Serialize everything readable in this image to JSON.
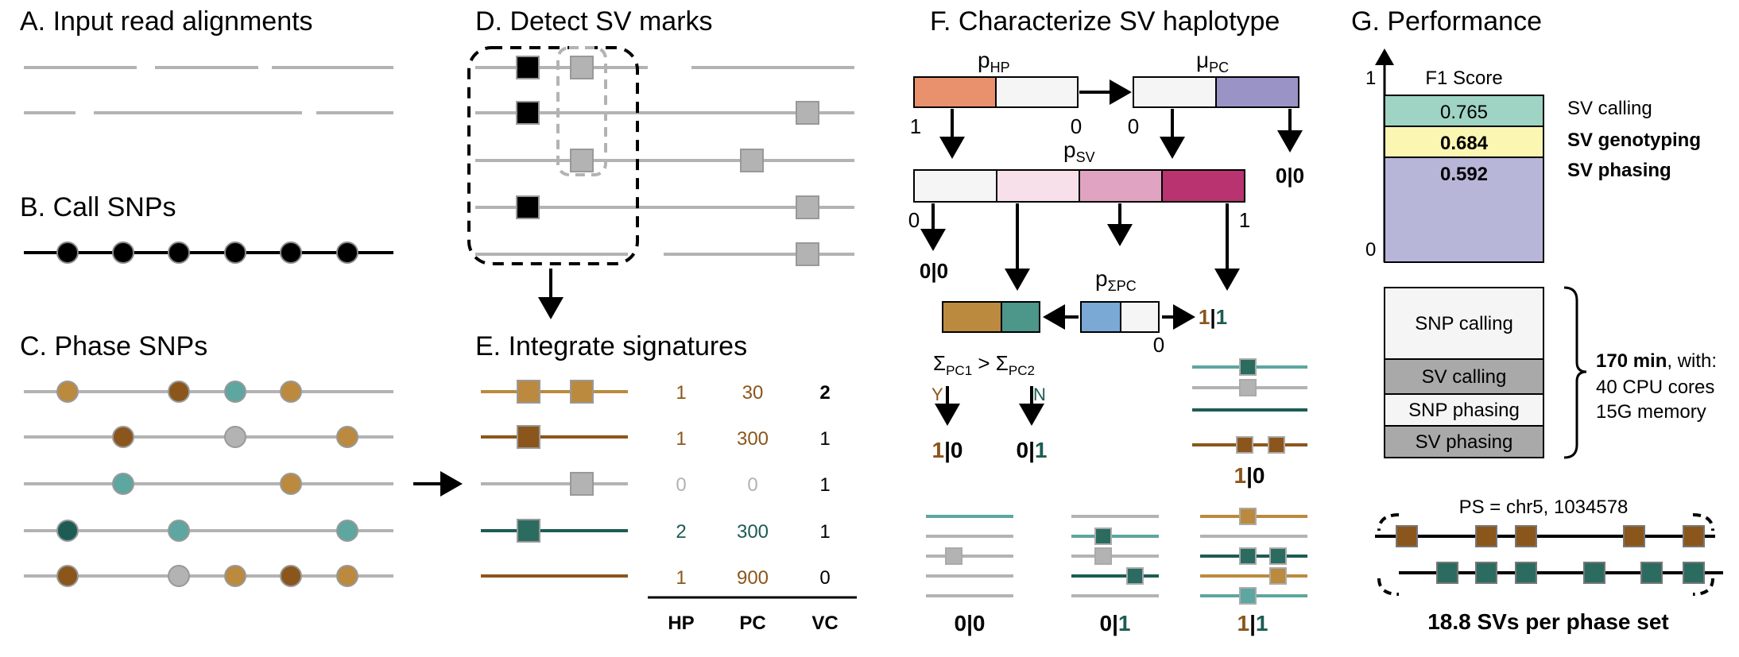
{
  "colors": {
    "read_gray": "#b3b3b3",
    "black": "#000000",
    "hp1_brown": "#bb8a3f",
    "hp1_dark_brown": "#8b561b",
    "hp2_teal": "#5ea6a0",
    "hp2_dark_teal": "#1d5c54",
    "sv_dark_square": "#2b6b60",
    "p_hp_fill": "#e8916c",
    "mu_pc_fill": "#9a93c6",
    "p_sv_light": "#f7e0ea",
    "p_sv_mid": "#e0a4c2",
    "p_sv_dark": "#b8336f",
    "p_sigma_blue": "#79a9d4",
    "f1_sv_calling": "#9fd3c4",
    "f1_sv_genotyping": "#fbf6b2",
    "f1_sv_phasing": "#b8b6d8",
    "runtime_light": "#f5f5f5",
    "runtime_dark": "#a9a9a9"
  },
  "panel_a": {
    "title": "A. Input read alignments"
  },
  "panel_b": {
    "title": "B. Call SNPs"
  },
  "panel_c": {
    "title": "C. Phase SNPs"
  },
  "panel_d": {
    "title": "D. Detect SV marks"
  },
  "panel_e": {
    "title": "E. Integrate signatures",
    "headers": [
      "HP",
      "PC",
      "VC"
    ],
    "rows": [
      {
        "hp": "1",
        "pc": "30",
        "vc": "2"
      },
      {
        "hp": "1",
        "pc": "300",
        "vc": "1"
      },
      {
        "hp": "0",
        "pc": "0",
        "vc": "1"
      },
      {
        "hp": "2",
        "pc": "300",
        "vc": "1"
      },
      {
        "hp": "1",
        "pc": "900",
        "vc": "0"
      }
    ]
  },
  "panel_f": {
    "title": "F. Characterize SV haplotype",
    "p_hp_label": "p",
    "p_hp_sub": "HP",
    "mu_pc_label": "μ",
    "mu_pc_sub": "PC",
    "p_sv_label": "p",
    "p_sv_sub": "SV",
    "p_sigma_label": "p",
    "p_sigma_sub": "ΣPC",
    "tick_one": "1",
    "tick_zero": "0",
    "gt_00": "0|0",
    "gt_11_a": "1",
    "gt_11_bar": "|",
    "gt_11_b": "1",
    "sigma_pc1": "Σ",
    "sigma_pc1_sub": "PC1",
    "gt_sign": " > ",
    "sigma_pc2": "Σ",
    "sigma_pc2_sub": "PC2",
    "yes": "Y",
    "no": "N",
    "gt_10_a": "1",
    "gt_10_b": "|0",
    "gt_01_a": "0|",
    "gt_01_b": "1"
  },
  "panel_g": {
    "title": "G. Performance",
    "axis_top": "1",
    "axis_bottom": "0",
    "f1_label": "F1 Score",
    "metrics": [
      {
        "value": "0.765",
        "label": "SV calling"
      },
      {
        "value": "0.684",
        "label": "SV genotyping"
      },
      {
        "value": "0.592",
        "label": "SV phasing"
      }
    ],
    "runtime_steps": [
      "SNP calling",
      "SV calling",
      "SNP phasing",
      "SV phasing"
    ],
    "runtime_total": "170 min",
    "runtime_suffix": ", with:",
    "runtime_cores": "40 CPU cores",
    "runtime_memory": "15G memory",
    "phase_set_label": "PS = chr5, 1034578",
    "sv_per_phase_set": "18.8 SVs per phase set"
  }
}
